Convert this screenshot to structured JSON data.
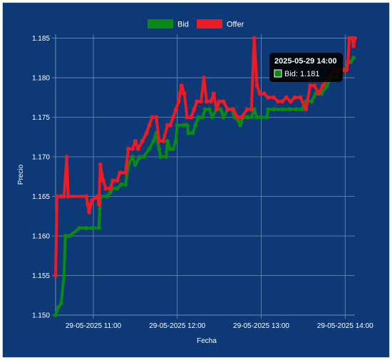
{
  "chart_data": {
    "type": "line",
    "x_unit": "minutes past 10:30 on 29-05-2025",
    "xlabel": "Fecha",
    "ylabel": "Precio",
    "xlim": [
      "29-05-2025 10:33",
      "29-05-2025 14:07"
    ],
    "ylim": [
      1.15,
      1.1855
    ],
    "yticks": [
      1.15,
      1.155,
      1.16,
      1.165,
      1.17,
      1.175,
      1.18,
      1.185
    ],
    "ytick_labels": [
      "1.150",
      "1.155",
      "1.160",
      "1.165",
      "1.170",
      "1.175",
      "1.180",
      "1.185"
    ],
    "xticks": [
      "29-05-2025 11:00",
      "29-05-2025 12:00",
      "29-05-2025 13:00",
      "29-05-2025 14:00"
    ],
    "xtick_labels": [
      "29-05-2025 11:00",
      "29-05-2025 12:00",
      "29-05-2025 13:00",
      "29-05-2025 14:00"
    ],
    "grid": true,
    "legend_position": "top-center",
    "series": [
      {
        "name": "Bid",
        "color": "#0a8a12",
        "points": [
          [
            "29-05-2025 10:33",
            1.15
          ],
          [
            "29-05-2025 10:35",
            1.151
          ],
          [
            "29-05-2025 10:37",
            1.1515
          ],
          [
            "29-05-2025 10:39",
            1.155
          ],
          [
            "29-05-2025 10:40",
            1.16
          ],
          [
            "29-05-2025 10:43",
            1.16
          ],
          [
            "29-05-2025 10:50",
            1.161
          ],
          [
            "29-05-2025 10:55",
            1.161
          ],
          [
            "29-05-2025 10:59",
            1.161
          ],
          [
            "29-05-2025 11:04",
            1.161
          ],
          [
            "29-05-2025 11:05",
            1.165
          ],
          [
            "29-05-2025 11:10",
            1.165
          ],
          [
            "29-05-2025 11:12",
            1.1655
          ],
          [
            "29-05-2025 11:14",
            1.166
          ],
          [
            "29-05-2025 11:17",
            1.166
          ],
          [
            "29-05-2025 11:20",
            1.1665
          ],
          [
            "29-05-2025 11:23",
            1.1665
          ],
          [
            "29-05-2025 11:25",
            1.169
          ],
          [
            "29-05-2025 11:28",
            1.17
          ],
          [
            "29-05-2025 11:30",
            1.169
          ],
          [
            "29-05-2025 11:33",
            1.17
          ],
          [
            "29-05-2025 11:36",
            1.17
          ],
          [
            "29-05-2025 11:40",
            1.171
          ],
          [
            "29-05-2025 11:43",
            1.172
          ],
          [
            "29-05-2025 11:45",
            1.173
          ],
          [
            "29-05-2025 11:47",
            1.171
          ],
          [
            "29-05-2025 11:48",
            1.17
          ],
          [
            "29-05-2025 11:52",
            1.17
          ],
          [
            "29-05-2025 11:53",
            1.172
          ],
          [
            "29-05-2025 11:55",
            1.171
          ],
          [
            "29-05-2025 11:57",
            1.171
          ],
          [
            "29-05-2025 11:59",
            1.172
          ],
          [
            "29-05-2025 12:00",
            1.174
          ],
          [
            "29-05-2025 12:05",
            1.174
          ],
          [
            "29-05-2025 12:07",
            1.174
          ],
          [
            "29-05-2025 12:08",
            1.173
          ],
          [
            "29-05-2025 12:11",
            1.173
          ],
          [
            "29-05-2025 12:13",
            1.174
          ],
          [
            "29-05-2025 12:15",
            1.175
          ],
          [
            "29-05-2025 12:18",
            1.175
          ],
          [
            "29-05-2025 12:20",
            1.176
          ],
          [
            "29-05-2025 12:23",
            1.176
          ],
          [
            "29-05-2025 12:25",
            1.175
          ],
          [
            "29-05-2025 12:28",
            1.176
          ],
          [
            "29-05-2025 12:31",
            1.176
          ],
          [
            "29-05-2025 12:33",
            1.175
          ],
          [
            "29-05-2025 12:36",
            1.176
          ],
          [
            "29-05-2025 12:39",
            1.176
          ],
          [
            "29-05-2025 12:41",
            1.175
          ],
          [
            "29-05-2025 12:44",
            1.1745
          ],
          [
            "29-05-2025 12:45",
            1.174
          ],
          [
            "29-05-2025 12:47",
            1.175
          ],
          [
            "29-05-2025 12:50",
            1.175
          ],
          [
            "29-05-2025 12:53",
            1.175
          ],
          [
            "29-05-2025 12:55",
            1.176
          ],
          [
            "29-05-2025 12:57",
            1.175
          ],
          [
            "29-05-2025 13:00",
            1.175
          ],
          [
            "29-05-2025 13:04",
            1.175
          ],
          [
            "29-05-2025 13:05",
            1.176
          ],
          [
            "29-05-2025 13:09",
            1.176
          ],
          [
            "29-05-2025 13:15",
            1.176
          ],
          [
            "29-05-2025 13:20",
            1.176
          ],
          [
            "29-05-2025 13:25",
            1.176
          ],
          [
            "29-05-2025 13:29",
            1.176
          ],
          [
            "29-05-2025 13:32",
            1.177
          ],
          [
            "29-05-2025 13:36",
            1.177
          ],
          [
            "29-05-2025 13:39",
            1.178
          ],
          [
            "29-05-2025 13:43",
            1.178
          ],
          [
            "29-05-2025 13:47",
            1.179
          ],
          [
            "29-05-2025 13:50",
            1.18
          ],
          [
            "29-05-2025 13:53",
            1.18
          ],
          [
            "29-05-2025 13:56",
            1.181
          ],
          [
            "29-05-2025 13:59",
            1.181
          ],
          [
            "29-05-2025 14:00",
            1.181
          ],
          [
            "29-05-2025 14:02",
            1.182
          ],
          [
            "29-05-2025 14:04",
            1.182
          ],
          [
            "29-05-2025 14:06",
            1.1825
          ]
        ]
      },
      {
        "name": "Offer",
        "color": "#f01a24",
        "points": [
          [
            "29-05-2025 10:33",
            1.155
          ],
          [
            "29-05-2025 10:34",
            1.165
          ],
          [
            "29-05-2025 10:37",
            1.165
          ],
          [
            "29-05-2025 10:39",
            1.165
          ],
          [
            "29-05-2025 10:41",
            1.17
          ],
          [
            "29-05-2025 10:42",
            1.165
          ],
          [
            "29-05-2025 10:55",
            1.165
          ],
          [
            "29-05-2025 10:56",
            1.164
          ],
          [
            "29-05-2025 10:57",
            1.163
          ],
          [
            "29-05-2025 10:59",
            1.1645
          ],
          [
            "29-05-2025 11:03",
            1.165
          ],
          [
            "29-05-2025 11:04",
            1.164
          ],
          [
            "29-05-2025 11:05",
            1.169
          ],
          [
            "29-05-2025 11:07",
            1.167
          ],
          [
            "29-05-2025 11:09",
            1.166
          ],
          [
            "29-05-2025 11:12",
            1.166
          ],
          [
            "29-05-2025 11:14",
            1.167
          ],
          [
            "29-05-2025 11:17",
            1.167
          ],
          [
            "29-05-2025 11:19",
            1.168
          ],
          [
            "29-05-2025 11:23",
            1.168
          ],
          [
            "29-05-2025 11:25",
            1.171
          ],
          [
            "29-05-2025 11:28",
            1.171
          ],
          [
            "29-05-2025 11:30",
            1.172
          ],
          [
            "29-05-2025 11:32",
            1.171
          ],
          [
            "29-05-2025 11:35",
            1.172
          ],
          [
            "29-05-2025 11:38",
            1.173
          ],
          [
            "29-05-2025 11:40",
            1.174
          ],
          [
            "29-05-2025 11:42",
            1.175
          ],
          [
            "29-05-2025 11:45",
            1.175
          ],
          [
            "29-05-2025 11:47",
            1.172
          ],
          [
            "29-05-2025 11:50",
            1.172
          ],
          [
            "29-05-2025 11:53",
            1.174
          ],
          [
            "29-05-2025 11:55",
            1.174
          ],
          [
            "29-05-2025 11:57",
            1.175
          ],
          [
            "29-05-2025 11:59",
            1.176
          ],
          [
            "29-05-2025 12:01",
            1.177
          ],
          [
            "29-05-2025 12:02",
            1.178
          ],
          [
            "29-05-2025 12:03",
            1.179
          ],
          [
            "29-05-2025 12:05",
            1.178
          ],
          [
            "29-05-2025 12:07",
            1.175
          ],
          [
            "29-05-2025 12:10",
            1.175
          ],
          [
            "29-05-2025 12:12",
            1.176
          ],
          [
            "29-05-2025 12:14",
            1.177
          ],
          [
            "29-05-2025 12:17",
            1.177
          ],
          [
            "29-05-2025 12:19",
            1.18
          ],
          [
            "29-05-2025 12:21",
            1.177
          ],
          [
            "29-05-2025 12:24",
            1.177
          ],
          [
            "29-05-2025 12:26",
            1.178
          ],
          [
            "29-05-2025 12:28",
            1.176
          ],
          [
            "29-05-2025 12:30",
            1.177
          ],
          [
            "29-05-2025 12:33",
            1.177
          ],
          [
            "29-05-2025 12:36",
            1.176
          ],
          [
            "29-05-2025 12:40",
            1.176
          ],
          [
            "29-05-2025 12:43",
            1.175
          ],
          [
            "29-05-2025 12:46",
            1.175
          ],
          [
            "29-05-2025 12:50",
            1.176
          ],
          [
            "29-05-2025 12:53",
            1.176
          ],
          [
            "29-05-2025 12:55",
            1.185
          ],
          [
            "29-05-2025 12:57",
            1.179
          ],
          [
            "29-05-2025 12:59",
            1.178
          ],
          [
            "29-05-2025 13:02",
            1.178
          ],
          [
            "29-05-2025 13:05",
            1.1775
          ],
          [
            "29-05-2025 13:09",
            1.1775
          ],
          [
            "29-05-2025 13:12",
            1.177
          ],
          [
            "29-05-2025 13:15",
            1.177
          ],
          [
            "29-05-2025 13:18",
            1.1775
          ],
          [
            "29-05-2025 13:21",
            1.177
          ],
          [
            "29-05-2025 13:24",
            1.1775
          ],
          [
            "29-05-2025 13:28",
            1.1775
          ],
          [
            "29-05-2025 13:32",
            1.176
          ],
          [
            "29-05-2025 13:35",
            1.179
          ],
          [
            "29-05-2025 13:38",
            1.179
          ],
          [
            "29-05-2025 13:41",
            1.178
          ],
          [
            "29-05-2025 13:44",
            1.179
          ],
          [
            "29-05-2025 13:48",
            1.18
          ],
          [
            "29-05-2025 13:52",
            1.181
          ],
          [
            "29-05-2025 13:56",
            1.181
          ],
          [
            "29-05-2025 13:59",
            1.181
          ],
          [
            "29-05-2025 14:01",
            1.181
          ],
          [
            "29-05-2025 14:02",
            1.182
          ],
          [
            "29-05-2025 14:03",
            1.185
          ],
          [
            "29-05-2025 14:05",
            1.185
          ],
          [
            "29-05-2025 14:06",
            1.184
          ],
          [
            "29-05-2025 14:07",
            1.185
          ]
        ]
      }
    ],
    "tooltip": {
      "title": "2025-05-29 14:00",
      "series": "Bid",
      "value_text": "Bid: 1.181",
      "x": "29-05-2025 14:00",
      "y": 1.181
    }
  },
  "colors": {
    "background": "#0d3a76",
    "grid": "#6e8fbb",
    "bid": "#0a8a12",
    "offer": "#f01a24",
    "tooltip_bg": "#000000"
  }
}
